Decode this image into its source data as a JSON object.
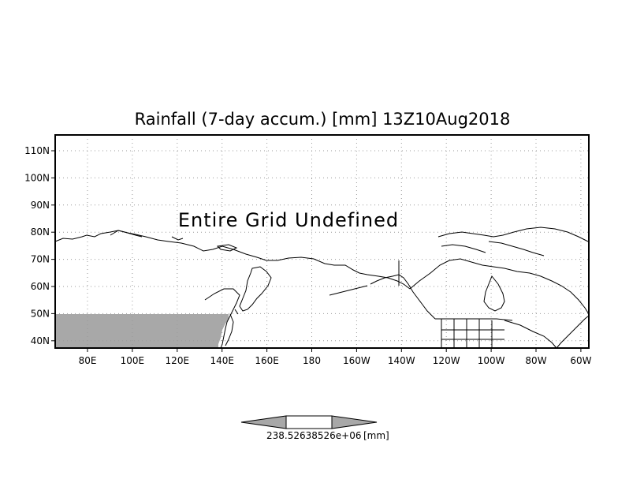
{
  "title": "Rainfall (7-day accum.) [mm] 13Z10Aug2018",
  "overlay_text": "Entire Grid Undefined",
  "lat_labels": [
    "110N",
    "100N",
    "90N",
    "80N",
    "70N",
    "60N",
    "50N",
    "40N"
  ],
  "lon_labels": [
    "80E",
    "100E",
    "120E",
    "140E",
    "160E",
    "180",
    "160W",
    "140W",
    "120W",
    "100W",
    "80W",
    "60W"
  ],
  "colorbar": {
    "value_label": "238.52638526e+06",
    "unit_label": "[mm]"
  },
  "colors": {
    "shaded_region": "#a8a8a8",
    "grid": "#999999",
    "coastline": "#000000"
  }
}
